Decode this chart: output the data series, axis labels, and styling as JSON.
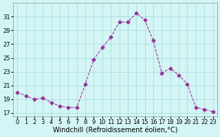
{
  "x": [
    0,
    1,
    2,
    3,
    4,
    5,
    6,
    7,
    8,
    9,
    10,
    11,
    12,
    13,
    14,
    15,
    16,
    17,
    18,
    19,
    20,
    21,
    22,
    23
  ],
  "y": [
    20.0,
    19.5,
    19.0,
    19.2,
    18.5,
    18.0,
    17.8,
    17.8,
    21.2,
    24.8,
    26.5,
    28.0,
    30.2,
    30.2,
    31.5,
    30.5,
    27.5,
    22.8,
    23.5,
    22.5,
    21.2,
    17.8,
    17.5,
    17.2
  ],
  "line_color": "#993399",
  "marker": "D",
  "marker_size": 2.5,
  "bg_color": "#d4f5f5",
  "grid_color": "#aadddd",
  "xlabel": "Windchill (Refroidissement éolien,°C)",
  "xlabel_fontsize": 7,
  "tick_fontsize": 6,
  "ylim": [
    16.5,
    33
  ],
  "xlim": [
    -0.5,
    23.5
  ],
  "yticks": [
    17,
    19,
    21,
    23,
    25,
    27,
    29,
    31
  ],
  "xticks": [
    0,
    1,
    2,
    3,
    4,
    5,
    6,
    7,
    8,
    9,
    10,
    11,
    12,
    13,
    14,
    15,
    16,
    17,
    18,
    19,
    20,
    21,
    22,
    23
  ]
}
